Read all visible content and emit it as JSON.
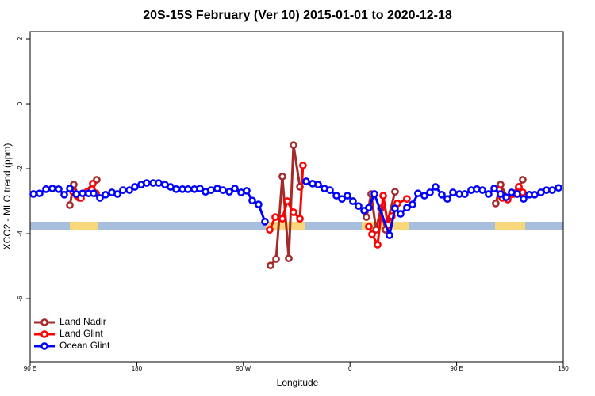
{
  "chart_data": {
    "type": "line",
    "title": "20S-15S February (Ver 10)   2015-01-01 to 2020-12-18",
    "x_label": "Longitude",
    "y_label": "XCO2 - MLO trend (ppm)",
    "xlim": [
      90,
      540
    ],
    "ylim": [
      -7.95,
      2.22
    ],
    "xticks": [
      {
        "value": 90,
        "label": "90 E"
      },
      {
        "value": 180,
        "label": "180"
      },
      {
        "value": 270,
        "label": "90 W"
      },
      {
        "value": 360,
        "label": "0"
      },
      {
        "value": 450,
        "label": "90 E"
      },
      {
        "value": 540,
        "label": "180"
      }
    ],
    "yticks": [
      2,
      0,
      -2,
      -4,
      -6
    ],
    "legend": "bottom-left",
    "series": [
      {
        "name": "Land Nadir",
        "color": "#a52a2a",
        "x": [
          123.5,
          126.8,
          131.5,
          146.2,
          null,
          292.9,
          297.6,
          302.9,
          308.3,
          312.3,
          317.7,
          null,
          373.9,
          377.9,
          382,
          386,
          390,
          398,
          null,
          483,
          487.1,
          493.1,
          502.5,
          505.8
        ],
        "values": [
          -3.12,
          -2.49,
          -2.9,
          -2.34,
          null,
          -4.98,
          -4.78,
          -2.24,
          -4.76,
          -1.27,
          -2.56,
          null,
          -3.49,
          -2.78,
          -3.88,
          -3.22,
          -3.88,
          -2.71,
          null,
          -3.07,
          -2.49,
          -2.9,
          -2.56,
          -2.34
        ]
      },
      {
        "name": "Land Glint",
        "color": "#ff0000",
        "x": [
          126.2,
          129.5,
          132.9,
          138.2,
          142.9,
          145.6,
          null,
          292.2,
          296.9,
          302.9,
          307,
          312.3,
          317.7,
          320.3,
          null,
          375.9,
          378.6,
          383.3,
          388,
          392,
          395.3,
          400,
          408,
          null,
          485.7,
          488.4,
          493.1,
          497.8,
          502.5,
          505.8
        ],
        "values": [
          -2.71,
          -2.83,
          -2.9,
          -2.71,
          -2.46,
          -2.76,
          null,
          -3.88,
          -3.49,
          -3.54,
          -3.0,
          -3.34,
          -3.54,
          -1.9,
          null,
          -3.78,
          -4.02,
          -4.34,
          -2.83,
          -3.73,
          -3.46,
          -3.07,
          -2.93,
          null,
          -2.66,
          -2.9,
          -2.95,
          -2.78,
          -2.56,
          -2.73
        ]
      },
      {
        "name": "Ocean Glint",
        "color": "#0000ff",
        "x": [
          92.7,
          98,
          103.4,
          108.7,
          114.1,
          118.8,
          123.5,
          128.8,
          134.2,
          139.5,
          143.6,
          148.9,
          153.6,
          159,
          163.7,
          168.3,
          173.7,
          178.4,
          183.7,
          188.4,
          193.8,
          198.5,
          203.8,
          208.5,
          213.2,
          218.6,
          223.2,
          228.6,
          233.3,
          238,
          242.7,
          248,
          252.7,
          258.1,
          262.8,
          268.1,
          272.8,
          277.5,
          282.8,
          288.2,
          null,
          323,
          328.4,
          333.1,
          338.4,
          343.1,
          348.5,
          353.2,
          357.8,
          362.5,
          367.2,
          371.9,
          375.9,
          380.6,
          393.3,
          398,
          402.7,
          408,
          412.7,
          417.4,
          422.8,
          427.5,
          432.2,
          437.5,
          442.2,
          446.9,
          452.2,
          456.9,
          462.3,
          467,
          471.7,
          477,
          481.7,
          487.1,
          491.8,
          496.4,
          501.1,
          506.5,
          511.2,
          515.9,
          521.2,
          525.9,
          530.6,
          536
        ],
        "values": [
          -2.78,
          -2.76,
          -2.63,
          -2.61,
          -2.63,
          -2.8,
          -2.61,
          -2.78,
          -2.76,
          -2.76,
          -2.76,
          -2.9,
          -2.8,
          -2.73,
          -2.78,
          -2.66,
          -2.66,
          -2.56,
          -2.49,
          -2.44,
          -2.44,
          -2.44,
          -2.49,
          -2.56,
          -2.63,
          -2.63,
          -2.63,
          -2.63,
          -2.61,
          -2.71,
          -2.66,
          -2.61,
          -2.66,
          -2.71,
          -2.61,
          -2.73,
          -2.68,
          -2.98,
          -3.1,
          -3.63,
          null,
          -2.39,
          -2.46,
          -2.49,
          -2.61,
          -2.66,
          -2.83,
          -2.93,
          -2.83,
          -3.0,
          -3.15,
          -3.29,
          -3.2,
          -2.78,
          -4.05,
          -3.22,
          -3.39,
          -3.2,
          -3.1,
          -2.76,
          -2.83,
          -2.73,
          -2.56,
          -2.8,
          -2.93,
          -2.73,
          -2.78,
          -2.78,
          -2.66,
          -2.63,
          -2.66,
          -2.78,
          -2.61,
          -2.78,
          -2.88,
          -2.73,
          -2.78,
          -2.93,
          -2.8,
          -2.8,
          -2.73,
          -2.66,
          -2.66,
          -2.59
        ]
      }
    ]
  }
}
